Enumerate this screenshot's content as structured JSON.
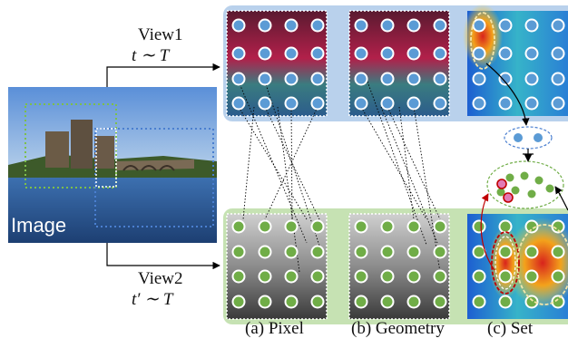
{
  "view1": {
    "name": "View1",
    "transform": "t ∼ T"
  },
  "view2": {
    "name": "View2",
    "transform": "t′ ∼ T"
  },
  "image_label": "Image",
  "captions": {
    "pixel": "(a) Pixel",
    "geometry": "(b) Geometry",
    "set": "(c) Set"
  },
  "colors": {
    "view1_panel": "#b9d1ec",
    "view2_panel": "#c6e2b3",
    "view1_point": "#5b9bd5",
    "view2_point": "#70ad47",
    "highlight": "#c00000",
    "point_stroke": "#ffffff"
  }
}
